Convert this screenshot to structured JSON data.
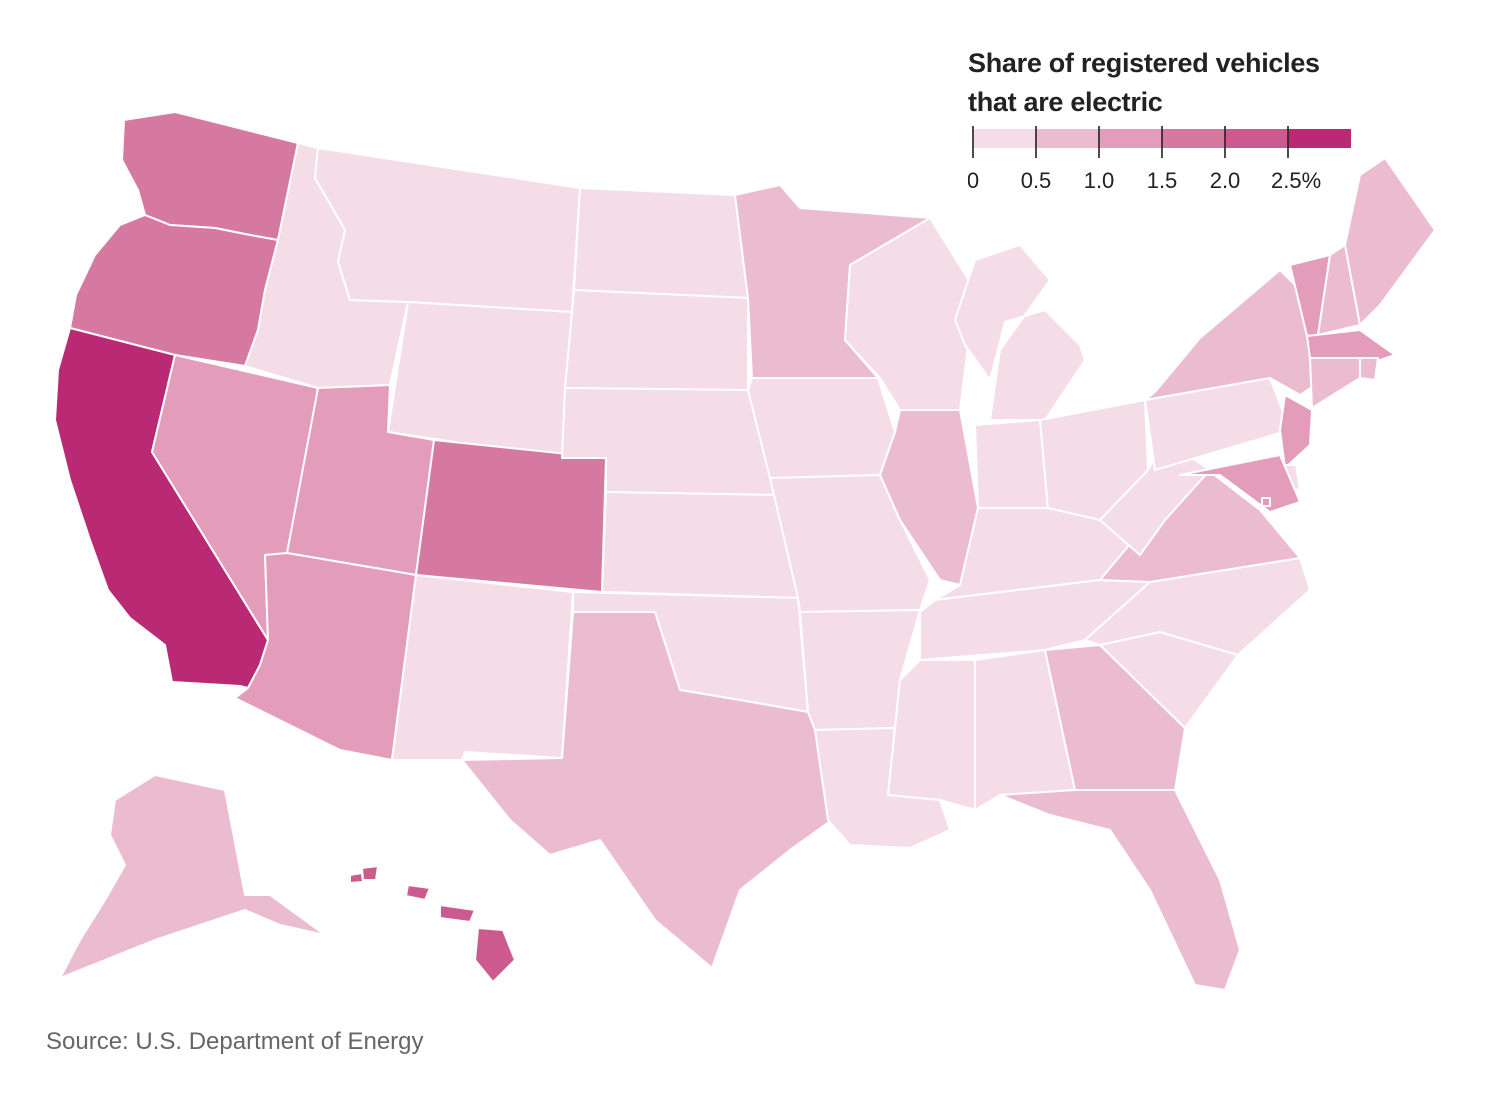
{
  "legend": {
    "title_line1": "Share of registered vehicles",
    "title_line2": "that are electric",
    "ticks": [
      "0",
      "0.5",
      "1.0",
      "1.5",
      "2.0",
      "2.5%"
    ],
    "bins": [
      {
        "min": 0,
        "max": 0.5,
        "color": "#f4dde6"
      },
      {
        "min": 0.5,
        "max": 1.0,
        "color": "#ebbcd0"
      },
      {
        "min": 1.0,
        "max": 1.5,
        "color": "#e39cb9"
      },
      {
        "min": 1.5,
        "max": 2.0,
        "color": "#d679a1"
      },
      {
        "min": 2.0,
        "max": 2.5,
        "color": "#cd5a8f"
      },
      {
        "min": 2.5,
        "max": 3.0,
        "color": "#ba2a74"
      }
    ]
  },
  "source": "Source: U.S. Department of Energy",
  "chart_data": {
    "type": "choropleth",
    "unit": "%",
    "regions": [
      {
        "state": "WA",
        "bin": 3
      },
      {
        "state": "OR",
        "bin": 3
      },
      {
        "state": "CA",
        "bin": 5
      },
      {
        "state": "NV",
        "bin": 2
      },
      {
        "state": "ID",
        "bin": 0
      },
      {
        "state": "MT",
        "bin": 0
      },
      {
        "state": "WY",
        "bin": 0
      },
      {
        "state": "UT",
        "bin": 2
      },
      {
        "state": "AZ",
        "bin": 2
      },
      {
        "state": "CO",
        "bin": 3
      },
      {
        "state": "NM",
        "bin": 0
      },
      {
        "state": "ND",
        "bin": 0
      },
      {
        "state": "SD",
        "bin": 0
      },
      {
        "state": "NE",
        "bin": 0
      },
      {
        "state": "KS",
        "bin": 0
      },
      {
        "state": "OK",
        "bin": 0
      },
      {
        "state": "TX",
        "bin": 1
      },
      {
        "state": "MN",
        "bin": 1
      },
      {
        "state": "IA",
        "bin": 0
      },
      {
        "state": "MO",
        "bin": 0
      },
      {
        "state": "AR",
        "bin": 0
      },
      {
        "state": "LA",
        "bin": 0
      },
      {
        "state": "WI",
        "bin": 0
      },
      {
        "state": "IL",
        "bin": 1
      },
      {
        "state": "MI",
        "bin": 0
      },
      {
        "state": "IN",
        "bin": 0
      },
      {
        "state": "OH",
        "bin": 0
      },
      {
        "state": "KY",
        "bin": 0
      },
      {
        "state": "TN",
        "bin": 0
      },
      {
        "state": "MS",
        "bin": 0
      },
      {
        "state": "AL",
        "bin": 0
      },
      {
        "state": "GA",
        "bin": 1
      },
      {
        "state": "FL",
        "bin": 1
      },
      {
        "state": "SC",
        "bin": 0
      },
      {
        "state": "NC",
        "bin": 0
      },
      {
        "state": "VA",
        "bin": 1
      },
      {
        "state": "WV",
        "bin": 0
      },
      {
        "state": "PA",
        "bin": 0
      },
      {
        "state": "NY",
        "bin": 1
      },
      {
        "state": "VT",
        "bin": 2
      },
      {
        "state": "NH",
        "bin": 1
      },
      {
        "state": "ME",
        "bin": 1
      },
      {
        "state": "MA",
        "bin": 2
      },
      {
        "state": "RI",
        "bin": 1
      },
      {
        "state": "CT",
        "bin": 1
      },
      {
        "state": "NJ",
        "bin": 2
      },
      {
        "state": "DE",
        "bin": 0
      },
      {
        "state": "MD",
        "bin": 2
      },
      {
        "state": "DC",
        "bin": 2
      },
      {
        "state": "AK",
        "bin": 1
      },
      {
        "state": "HI",
        "bin": 4
      }
    ]
  }
}
